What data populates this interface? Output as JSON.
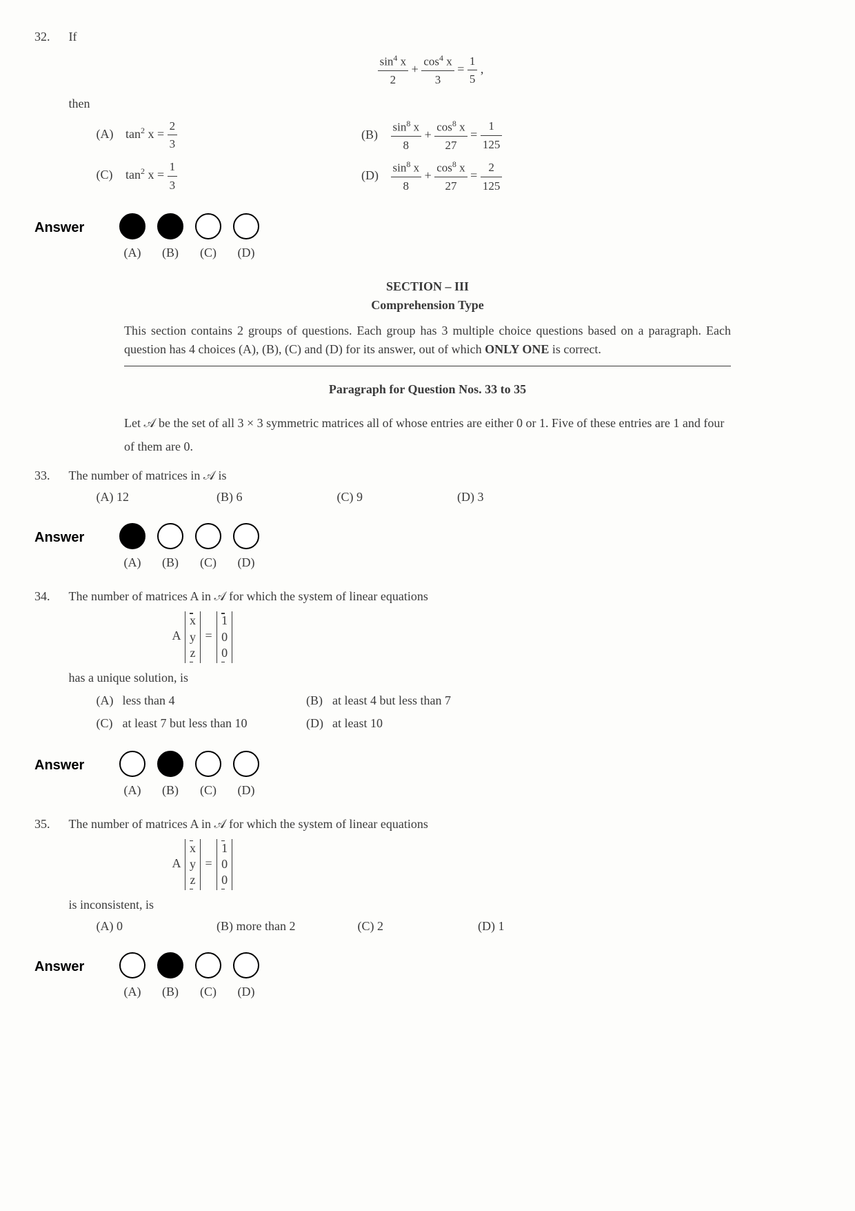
{
  "q32": {
    "num": "32.",
    "if_text": "If",
    "eq_parts": {
      "num1": "sin",
      "exp1": "4",
      "var1": " x",
      "den1": "2",
      "plus": " + ",
      "num2": "cos",
      "exp2": "4",
      "var2": " x",
      "den2": "3",
      "eq": " = ",
      "rhs_num": "1",
      "rhs_den": "5",
      "comma": " ,"
    },
    "then_text": "then",
    "opts": {
      "A": {
        "label": "(A)",
        "lhs": "tan",
        "exp": "2",
        "var": " x = ",
        "rnum": "2",
        "rden": "3"
      },
      "B": {
        "label": "(B)",
        "n1": "sin",
        "e1": "8",
        "v1": " x",
        "d1": "8",
        "n2": "cos",
        "e2": "8",
        "v2": " x",
        "d2": "27",
        "rn": "1",
        "rd": "125"
      },
      "C": {
        "label": "(C)",
        "lhs": "tan",
        "exp": "2",
        "var": " x = ",
        "rnum": "1",
        "rden": "3"
      },
      "D": {
        "label": "(D)",
        "n1": "sin",
        "e1": "8",
        "v1": " x",
        "d1": "8",
        "n2": "cos",
        "e2": "8",
        "v2": " x",
        "d2": "27",
        "rn": "2",
        "rd": "125"
      }
    },
    "answer": {
      "label": "Answer",
      "filled": [
        true,
        true,
        false,
        false
      ],
      "letters": [
        "(A)",
        "(B)",
        "(C)",
        "(D)"
      ]
    }
  },
  "section": {
    "title": "SECTION – III",
    "sub": "Comprehension Type",
    "desc_pre": "This section contains 2 groups of questions. Each group has 3 multiple choice questions based on a paragraph. Each question has 4 choices (A), (B), (C) and (D) for its answer, out of which ",
    "desc_bold": "ONLY ONE",
    "desc_post": " is correct."
  },
  "para": {
    "title": "Paragraph for Question Nos. 33 to 35",
    "desc": "Let 𝒜 be the set of all 3 × 3 symmetric matrices all of whose entries are either 0 or 1. Five of these entries are 1 and four of them are 0."
  },
  "q33": {
    "num": "33.",
    "text": "The number of matrices in 𝒜 is",
    "opts": {
      "A": "(A)   12",
      "B": "(B)   6",
      "C": "(C)   9",
      "D": "(D)   3"
    },
    "answer": {
      "label": "Answer",
      "filled": [
        true,
        false,
        false,
        false
      ],
      "letters": [
        "(A)",
        "(B)",
        "(C)",
        "(D)"
      ]
    }
  },
  "q34": {
    "num": "34.",
    "text_pre": "The number of matrices A in 𝒜 for which the system of linear equations",
    "text_post": "has a unique solution, is",
    "opts": {
      "A": {
        "label": "(A)",
        "text": "less than 4"
      },
      "B": {
        "label": "(B)",
        "text": "at least 4 but less than 7"
      },
      "C": {
        "label": "(C)",
        "text": "at least 7 but less than 10"
      },
      "D": {
        "label": "(D)",
        "text": "at least 10"
      }
    },
    "answer": {
      "label": "Answer",
      "filled": [
        false,
        true,
        false,
        false
      ],
      "letters": [
        "(A)",
        "(B)",
        "(C)",
        "(D)"
      ]
    }
  },
  "q35": {
    "num": "35.",
    "text_pre": "The number of matrices A in 𝒜 for which the system of linear equations",
    "text_post": "is inconsistent, is",
    "opts": {
      "A": "(A)   0",
      "B": "(B)   more than 2",
      "C": "(C)   2",
      "D": "(D)   1"
    },
    "answer": {
      "label": "Answer",
      "filled": [
        false,
        true,
        false,
        false
      ],
      "letters": [
        "(A)",
        "(B)",
        "(C)",
        "(D)"
      ]
    }
  },
  "matrix": {
    "lhs": "A",
    "xyz": [
      "x",
      "y",
      "z"
    ],
    "rhs": [
      "1",
      "0",
      "0"
    ],
    "eq": "="
  }
}
